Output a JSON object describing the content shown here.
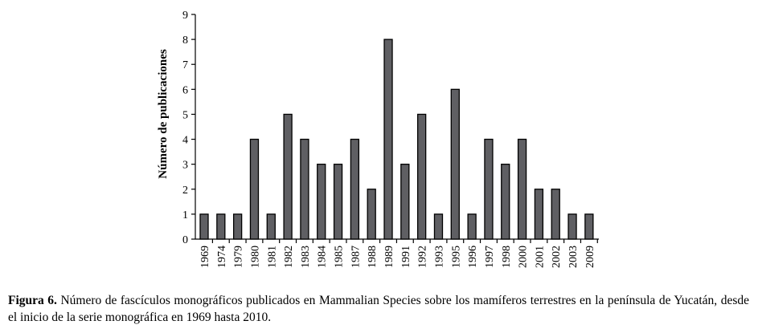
{
  "chart_data": {
    "type": "bar",
    "categories": [
      "1969",
      "1974",
      "1979",
      "1980",
      "1981",
      "1982",
      "1983",
      "1984",
      "1985",
      "1987",
      "1988",
      "1989",
      "1991",
      "1992",
      "1993",
      "1995",
      "1996",
      "1997",
      "1998",
      "2000",
      "2001",
      "2002",
      "2003",
      "2009"
    ],
    "values": [
      1,
      1,
      1,
      4,
      1,
      5,
      4,
      3,
      3,
      4,
      2,
      8,
      3,
      5,
      1,
      6,
      1,
      4,
      3,
      4,
      2,
      2,
      1,
      1
    ],
    "ylabel": "Número de publicaciones",
    "xlabel": "",
    "ylim": [
      0,
      9
    ],
    "yticks": [
      0,
      1,
      2,
      3,
      4,
      5,
      6,
      7,
      8,
      9
    ],
    "bar_color": "#5f5f63",
    "bar_edge_color": "#000000"
  },
  "caption": {
    "label": "Figura 6.",
    "text": " Número de fascículos monográficos publicados en Mammalian Species sobre los mamíferos terrestres en la península de Yucatán, desde el inicio de la serie monográfica en 1969 hasta 2010."
  }
}
